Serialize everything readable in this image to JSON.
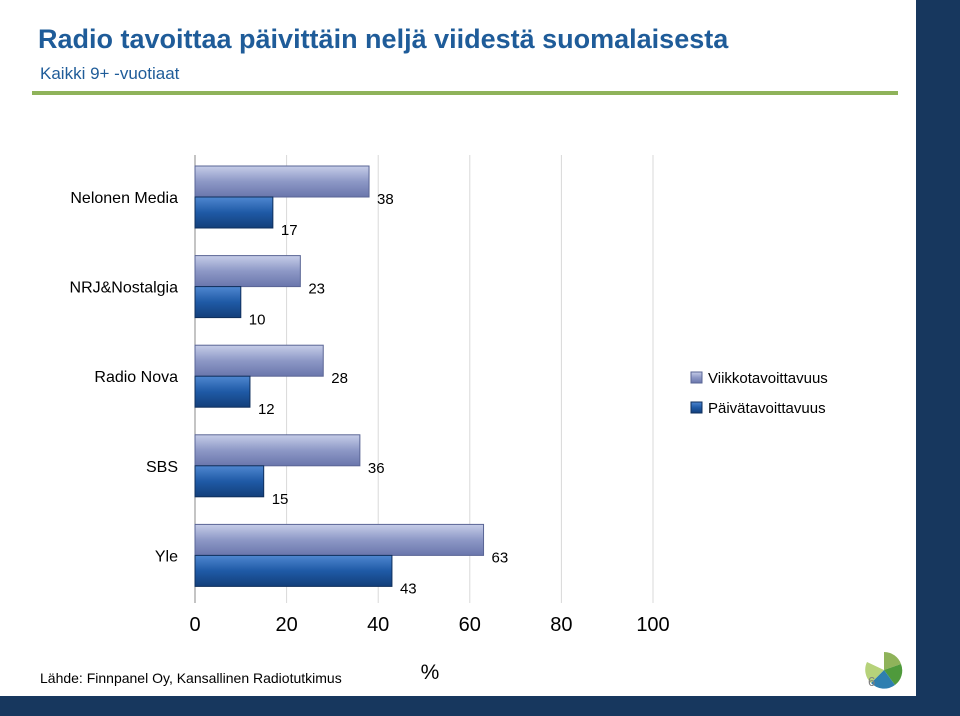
{
  "title": "Radio tavoittaa päivittäin neljä viidestä suomalaisesta",
  "subtitle": "Kaikki 9+ -vuotiaat",
  "source": "Lähde: Finnpanel Oy, Kansallinen Radiotutkimus",
  "page_number": "6",
  "colors": {
    "accent": "#1f5c99",
    "rule": "#8fb35a",
    "frame": "#17375e",
    "weekly": "#8d98c6",
    "daily": "#1f5aa6"
  },
  "icons": [
    "logo-icon"
  ],
  "chart_data": {
    "type": "bar",
    "orientation": "horizontal",
    "categories": [
      "Nelonen Media",
      "NRJ&Nostalgia",
      "Radio Nova",
      "SBS",
      "Yle"
    ],
    "series": [
      {
        "name": "Viikkotavoittavuus",
        "values": [
          38,
          23,
          28,
          36,
          63
        ]
      },
      {
        "name": "Päivätavoittavuus",
        "values": [
          17,
          10,
          12,
          15,
          43
        ]
      }
    ],
    "xlim": [
      0,
      100
    ],
    "xticks": [
      "0",
      "20",
      "40",
      "60",
      "80",
      "100"
    ],
    "xlabel": "%",
    "legend_position": "right",
    "grid": true
  }
}
